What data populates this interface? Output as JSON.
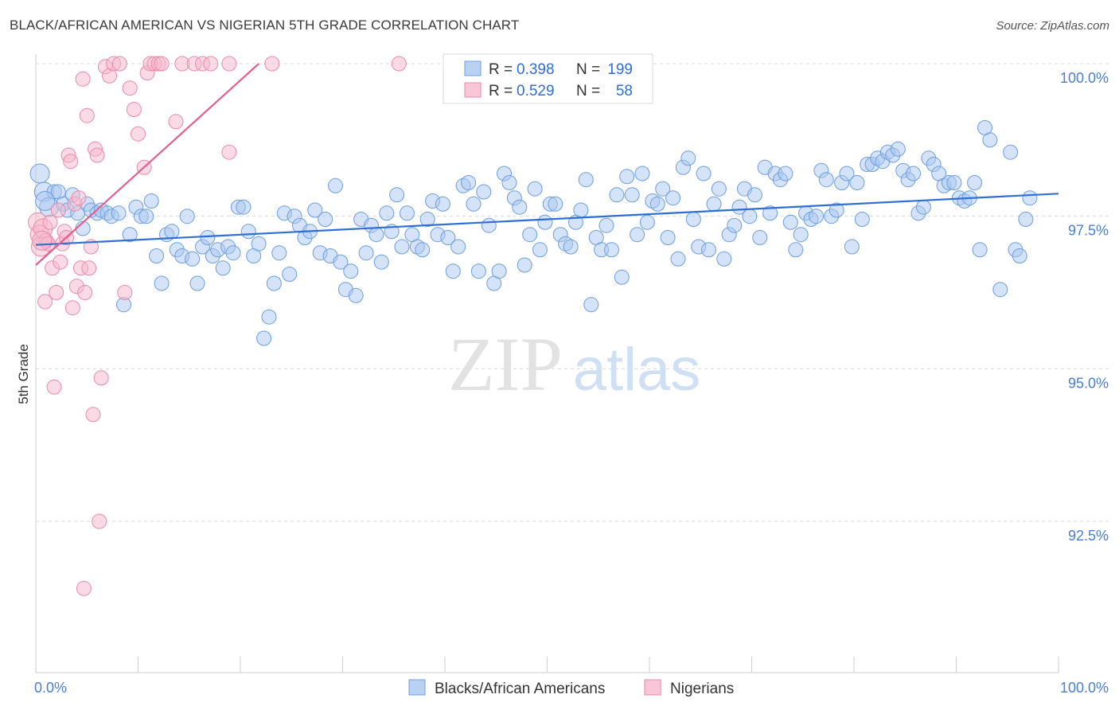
{
  "title": "BLACK/AFRICAN AMERICAN VS NIGERIAN 5TH GRADE CORRELATION CHART",
  "source": "Source: ZipAtlas.com",
  "watermark": {
    "zip": "ZIP",
    "atlas": "atlas"
  },
  "colors": {
    "blue_fill": "#a9c7ef",
    "blue_stroke": "#6d9ee0",
    "blue_line": "#2f6fd3",
    "pink_fill": "#f6b8cc",
    "pink_stroke": "#e98aa9",
    "pink_line": "#e0608e",
    "grid": "#d9d9d9",
    "tick_text": "#4a7fd0"
  },
  "legend": {
    "rows": [
      {
        "r_label": "R =",
        "r_value": "0.398",
        "n_label": "N =",
        "n_value": "199"
      },
      {
        "r_label": "R =",
        "r_value": "0.529",
        "n_label": "N =",
        "n_value": "58"
      }
    ]
  },
  "bottom_legend": [
    "Blacks/African Americans",
    "Nigerians"
  ],
  "chart_data": {
    "type": "scatter",
    "xlabel": "",
    "ylabel": "5th Grade",
    "xlim": [
      0,
      100
    ],
    "ylim": [
      90.5,
      100.2
    ],
    "x_tick_labels": [
      "0.0%",
      "100.0%"
    ],
    "y_ticks": [
      92.5,
      95.0,
      97.5,
      100.0
    ],
    "y_tick_labels": [
      "92.5%",
      "95.0%",
      "97.5%",
      "100.0%"
    ],
    "grid": "horizontal dashed",
    "series": [
      {
        "name": "Blacks/African Americans",
        "trend": [
          [
            0,
            97.03
          ],
          [
            100,
            97.87
          ]
        ],
        "points": [
          [
            0.4,
            98.2
          ],
          [
            0.8,
            97.9
          ],
          [
            1.3,
            97.65
          ],
          [
            1.8,
            97.9
          ],
          [
            2.2,
            97.9
          ],
          [
            2.7,
            97.7
          ],
          [
            3.1,
            97.6
          ],
          [
            3.6,
            97.85
          ],
          [
            4.1,
            97.55
          ],
          [
            4.6,
            97.3
          ],
          [
            5.0,
            97.7
          ],
          [
            5.4,
            97.6
          ],
          [
            6.0,
            97.55
          ],
          [
            6.4,
            97.6
          ],
          [
            7.0,
            97.55
          ],
          [
            7.4,
            97.5
          ],
          [
            8.1,
            97.55
          ],
          [
            8.6,
            96.05
          ],
          [
            9.2,
            97.2
          ],
          [
            9.8,
            97.65
          ],
          [
            10.3,
            97.5
          ],
          [
            10.8,
            97.5
          ],
          [
            11.3,
            97.75
          ],
          [
            11.8,
            96.85
          ],
          [
            12.3,
            96.4
          ],
          [
            12.8,
            97.2
          ],
          [
            13.3,
            97.25
          ],
          [
            13.8,
            96.95
          ],
          [
            14.3,
            96.85
          ],
          [
            14.8,
            97.5
          ],
          [
            15.3,
            96.8
          ],
          [
            15.8,
            96.4
          ],
          [
            16.3,
            97.0
          ],
          [
            16.8,
            97.15
          ],
          [
            17.3,
            96.85
          ],
          [
            17.8,
            96.95
          ],
          [
            18.3,
            96.65
          ],
          [
            18.8,
            97.0
          ],
          [
            19.3,
            96.9
          ],
          [
            19.8,
            97.65
          ],
          [
            20.3,
            97.65
          ],
          [
            20.8,
            97.25
          ],
          [
            21.3,
            96.85
          ],
          [
            21.8,
            97.05
          ],
          [
            22.3,
            95.5
          ],
          [
            22.8,
            95.85
          ],
          [
            23.3,
            96.4
          ],
          [
            23.8,
            96.9
          ],
          [
            24.3,
            97.55
          ],
          [
            24.8,
            96.55
          ],
          [
            25.3,
            97.5
          ],
          [
            25.8,
            97.35
          ],
          [
            26.3,
            97.15
          ],
          [
            26.8,
            97.25
          ],
          [
            27.3,
            97.6
          ],
          [
            27.8,
            96.9
          ],
          [
            28.3,
            97.45
          ],
          [
            28.8,
            96.85
          ],
          [
            29.3,
            98.0
          ],
          [
            29.8,
            96.75
          ],
          [
            30.3,
            96.3
          ],
          [
            30.8,
            96.6
          ],
          [
            31.3,
            96.2
          ],
          [
            31.8,
            97.45
          ],
          [
            32.3,
            96.9
          ],
          [
            32.8,
            97.35
          ],
          [
            33.3,
            97.2
          ],
          [
            33.8,
            96.75
          ],
          [
            34.3,
            97.55
          ],
          [
            34.8,
            97.25
          ],
          [
            35.3,
            97.85
          ],
          [
            35.8,
            97.0
          ],
          [
            36.3,
            97.55
          ],
          [
            36.8,
            97.2
          ],
          [
            37.3,
            97.0
          ],
          [
            37.8,
            96.95
          ],
          [
            38.3,
            97.45
          ],
          [
            38.8,
            97.75
          ],
          [
            39.3,
            97.2
          ],
          [
            39.8,
            97.7
          ],
          [
            40.3,
            97.15
          ],
          [
            40.8,
            96.6
          ],
          [
            41.3,
            97.0
          ],
          [
            41.8,
            98.0
          ],
          [
            42.3,
            98.05
          ],
          [
            42.8,
            97.7
          ],
          [
            43.3,
            96.6
          ],
          [
            43.8,
            97.9
          ],
          [
            44.3,
            97.35
          ],
          [
            44.8,
            96.4
          ],
          [
            45.3,
            96.6
          ],
          [
            45.8,
            98.2
          ],
          [
            46.3,
            98.05
          ],
          [
            46.8,
            97.8
          ],
          [
            47.3,
            97.65
          ],
          [
            47.8,
            96.7
          ],
          [
            48.3,
            97.2
          ],
          [
            48.8,
            97.95
          ],
          [
            49.3,
            96.95
          ],
          [
            49.8,
            97.4
          ],
          [
            50.3,
            97.7
          ],
          [
            50.8,
            97.7
          ],
          [
            51.3,
            97.2
          ],
          [
            51.8,
            97.05
          ],
          [
            52.3,
            97.0
          ],
          [
            52.8,
            97.4
          ],
          [
            53.3,
            97.6
          ],
          [
            53.8,
            98.1
          ],
          [
            54.3,
            96.05
          ],
          [
            54.8,
            97.15
          ],
          [
            55.3,
            96.95
          ],
          [
            55.8,
            97.35
          ],
          [
            56.3,
            96.95
          ],
          [
            56.8,
            97.85
          ],
          [
            57.3,
            96.5
          ],
          [
            57.8,
            98.15
          ],
          [
            58.3,
            97.85
          ],
          [
            58.8,
            97.2
          ],
          [
            59.3,
            98.2
          ],
          [
            59.8,
            97.4
          ],
          [
            60.3,
            97.75
          ],
          [
            60.8,
            97.7
          ],
          [
            61.3,
            97.95
          ],
          [
            61.8,
            97.15
          ],
          [
            62.3,
            97.8
          ],
          [
            62.8,
            96.8
          ],
          [
            63.3,
            98.3
          ],
          [
            63.8,
            98.45
          ],
          [
            64.3,
            97.45
          ],
          [
            64.8,
            97.0
          ],
          [
            65.3,
            98.2
          ],
          [
            65.8,
            96.95
          ],
          [
            66.3,
            97.7
          ],
          [
            66.8,
            97.95
          ],
          [
            67.3,
            96.8
          ],
          [
            67.8,
            97.2
          ],
          [
            68.3,
            97.35
          ],
          [
            68.8,
            97.65
          ],
          [
            69.3,
            97.95
          ],
          [
            69.8,
            97.5
          ],
          [
            70.3,
            97.85
          ],
          [
            70.8,
            97.15
          ],
          [
            71.3,
            98.3
          ],
          [
            71.8,
            97.55
          ],
          [
            72.3,
            98.2
          ],
          [
            72.8,
            98.1
          ],
          [
            73.3,
            98.2
          ],
          [
            73.8,
            97.4
          ],
          [
            74.3,
            96.95
          ],
          [
            74.8,
            97.2
          ],
          [
            75.3,
            97.55
          ],
          [
            75.8,
            97.45
          ],
          [
            76.3,
            97.5
          ],
          [
            76.8,
            98.25
          ],
          [
            77.3,
            98.1
          ],
          [
            77.8,
            97.5
          ],
          [
            78.3,
            97.6
          ],
          [
            78.8,
            98.05
          ],
          [
            79.3,
            98.2
          ],
          [
            79.8,
            97.0
          ],
          [
            80.3,
            98.05
          ],
          [
            80.8,
            97.45
          ],
          [
            81.3,
            98.35
          ],
          [
            81.8,
            98.35
          ],
          [
            82.3,
            98.45
          ],
          [
            82.8,
            98.4
          ],
          [
            83.3,
            98.55
          ],
          [
            83.8,
            98.5
          ],
          [
            84.3,
            98.6
          ],
          [
            84.8,
            98.25
          ],
          [
            85.3,
            98.1
          ],
          [
            85.8,
            98.2
          ],
          [
            86.3,
            97.55
          ],
          [
            86.8,
            97.65
          ],
          [
            87.3,
            98.45
          ],
          [
            87.8,
            98.35
          ],
          [
            88.3,
            98.2
          ],
          [
            88.8,
            98.0
          ],
          [
            89.3,
            98.05
          ],
          [
            89.8,
            98.05
          ],
          [
            90.3,
            97.8
          ],
          [
            90.8,
            97.75
          ],
          [
            91.3,
            97.8
          ],
          [
            91.8,
            98.05
          ],
          [
            92.3,
            96.95
          ],
          [
            92.8,
            98.95
          ],
          [
            93.3,
            98.75
          ],
          [
            94.3,
            96.3
          ],
          [
            95.3,
            98.55
          ],
          [
            95.8,
            96.95
          ],
          [
            96.2,
            96.85
          ],
          [
            96.8,
            97.45
          ],
          [
            97.2,
            97.8
          ],
          [
            0.9,
            97.75
          ]
        ]
      },
      {
        "name": "Nigerians",
        "trend": [
          [
            0,
            96.7
          ],
          [
            21.8,
            100.0
          ]
        ],
        "points": [
          [
            0.2,
            97.4
          ],
          [
            0.4,
            97.2
          ],
          [
            0.5,
            97.0
          ],
          [
            0.7,
            97.3
          ],
          [
            0.9,
            96.1
          ],
          [
            1.0,
            97.1
          ],
          [
            1.2,
            97.05
          ],
          [
            1.4,
            97.4
          ],
          [
            1.6,
            96.65
          ],
          [
            1.8,
            94.7
          ],
          [
            2.0,
            96.25
          ],
          [
            2.2,
            97.6
          ],
          [
            2.4,
            96.75
          ],
          [
            2.6,
            97.05
          ],
          [
            2.8,
            97.25
          ],
          [
            3.0,
            97.15
          ],
          [
            3.2,
            98.5
          ],
          [
            3.4,
            98.4
          ],
          [
            3.6,
            96.0
          ],
          [
            3.8,
            97.7
          ],
          [
            4.0,
            96.35
          ],
          [
            4.2,
            97.8
          ],
          [
            4.4,
            96.65
          ],
          [
            4.6,
            99.75
          ],
          [
            4.8,
            96.25
          ],
          [
            5.0,
            99.15
          ],
          [
            5.2,
            96.65
          ],
          [
            5.4,
            97.0
          ],
          [
            5.6,
            94.25
          ],
          [
            5.8,
            98.6
          ],
          [
            6.0,
            98.5
          ],
          [
            6.2,
            92.5
          ],
          [
            6.4,
            94.85
          ],
          [
            6.8,
            99.95
          ],
          [
            7.2,
            99.8
          ],
          [
            7.6,
            100.0
          ],
          [
            8.2,
            100.0
          ],
          [
            8.7,
            96.25
          ],
          [
            9.2,
            99.6
          ],
          [
            9.6,
            99.25
          ],
          [
            10.0,
            98.85
          ],
          [
            10.6,
            98.3
          ],
          [
            10.9,
            99.85
          ],
          [
            11.2,
            100.0
          ],
          [
            11.6,
            100.0
          ],
          [
            12.0,
            100.0
          ],
          [
            12.3,
            100.0
          ],
          [
            13.7,
            99.05
          ],
          [
            14.3,
            100.0
          ],
          [
            15.5,
            100.0
          ],
          [
            16.3,
            100.0
          ],
          [
            17.1,
            100.0
          ],
          [
            18.9,
            100.0
          ],
          [
            18.9,
            98.55
          ],
          [
            23.1,
            100.0
          ],
          [
            35.5,
            100.0
          ],
          [
            4.7,
            91.4
          ],
          [
            0.6,
            97.1
          ]
        ]
      }
    ]
  }
}
